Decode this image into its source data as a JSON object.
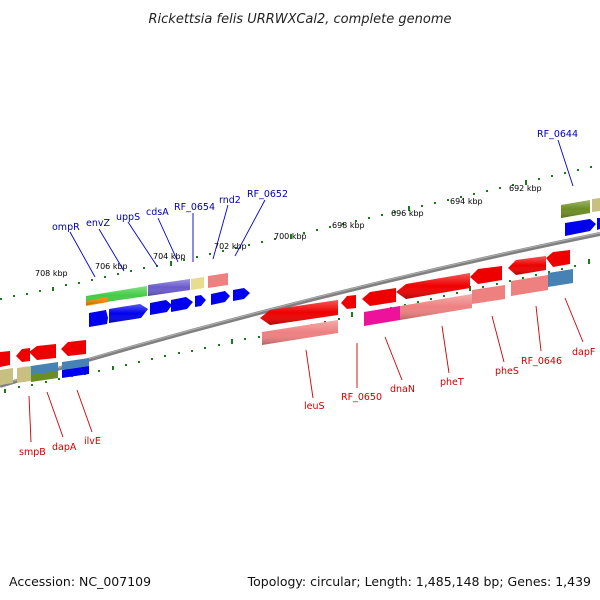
{
  "title": "Rickettsia felis URRWXCal2, complete genome",
  "footer": {
    "accession": "Accession: NC_007109",
    "summary": "Topology: circular; Length: 1,485,148 bp; Genes: 1,439"
  },
  "ticks": [
    "708 kbp",
    "706 kbp",
    "704 kbp",
    "702 kbp",
    "700 kbp",
    "698 kbp",
    "696 kbp",
    "694 kbp",
    "692 kbp"
  ],
  "genes_forward_labels": [
    "ompR",
    "envZ",
    "uppS",
    "cdsA",
    "RF_0654",
    "rnd2",
    "RF_0652",
    "RF_0644"
  ],
  "genes_reverse_labels": [
    "smpB",
    "dapA",
    "ilvE",
    "leuS",
    "RF_0650",
    "dnaN",
    "pheT",
    "pheS",
    "RF_0646",
    "dapF"
  ],
  "colors": {
    "backbone": "#808080",
    "tick_marks": "#1a7a1a",
    "forward_label": "#0000aa",
    "reverse_label": "#cc0000",
    "cds_blue": "#0000ee",
    "cds_red": "#ee0000",
    "cds_pink": "#ee8080",
    "cds_green": "#44cc44",
    "cds_olive": "#6b8e23",
    "cds_purple": "#6a5acd",
    "cds_magenta": "#ee1199",
    "cds_steel": "#4682b4",
    "cds_khaki": "#c8c080",
    "cds_orange": "#ff8c00"
  }
}
